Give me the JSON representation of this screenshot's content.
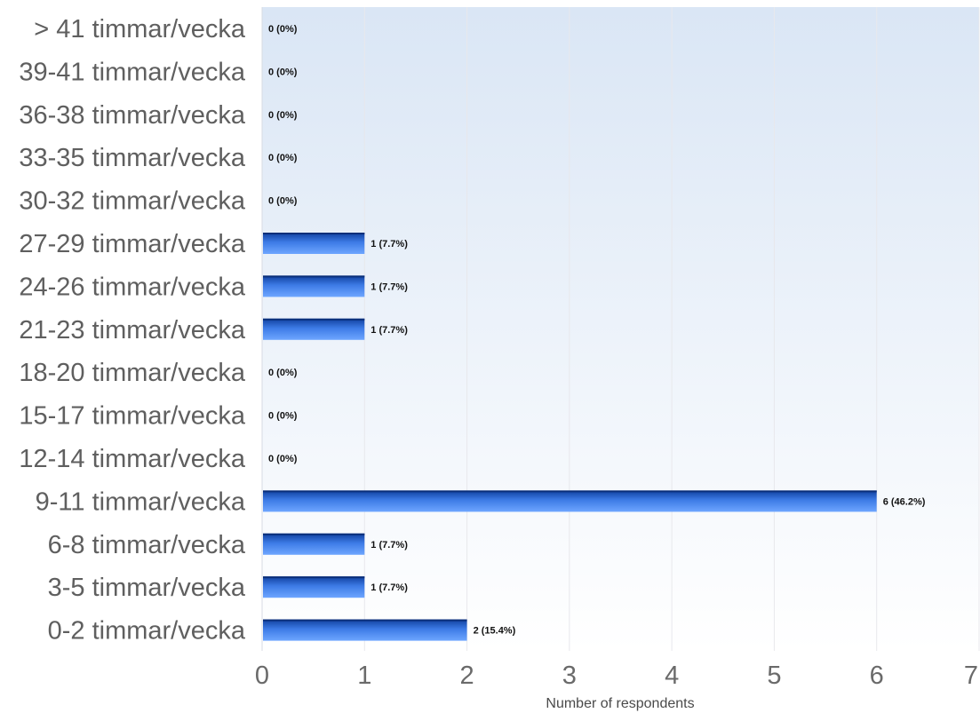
{
  "chart_data": {
    "type": "bar",
    "orientation": "horizontal",
    "categories": [
      "> 41 timmar/vecka",
      "39-41 timmar/vecka",
      "36-38 timmar/vecka",
      "33-35 timmar/vecka",
      "30-32 timmar/vecka",
      "27-29 timmar/vecka",
      "24-26 timmar/vecka",
      "21-23 timmar/vecka",
      "18-20 timmar/vecka",
      "15-17 timmar/vecka",
      "12-14 timmar/vecka",
      "9-11 timmar/vecka",
      "6-8 timmar/vecka",
      "3-5 timmar/vecka",
      "0-2 timmar/vecka"
    ],
    "values": [
      0,
      0,
      0,
      0,
      0,
      1,
      1,
      1,
      0,
      0,
      0,
      6,
      1,
      1,
      2
    ],
    "data_labels": [
      "0 (0%)",
      "0 (0%)",
      "0 (0%)",
      "0 (0%)",
      "0 (0%)",
      "1 (7.7%)",
      "1 (7.7%)",
      "1 (7.7%)",
      "0 (0%)",
      "0 (0%)",
      "0 (0%)",
      "6 (46.2%)",
      "1 (7.7%)",
      "1 (7.7%)",
      "2 (15.4%)"
    ],
    "xlabel": "Number of respondents",
    "xlim": [
      0,
      7
    ],
    "xticks": [
      "0",
      "1",
      "2",
      "3",
      "4",
      "5",
      "6",
      "7"
    ],
    "grid": "vertical",
    "colors": {
      "bar_dark": "#0f3f9e",
      "bar_mid": "#3d7be6",
      "bar_light": "#6ea6ff",
      "plot_bg_top": "#dae6f5",
      "plot_bg_bottom": "#ffffff",
      "grid": "#e8e8ec"
    }
  }
}
